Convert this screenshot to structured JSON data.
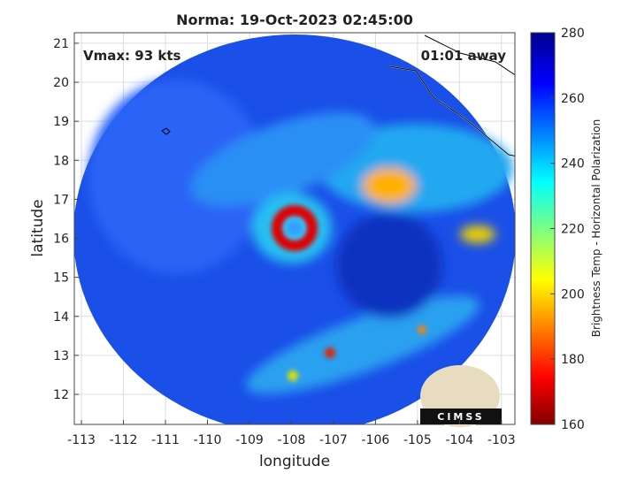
{
  "chart_data": {
    "type": "map",
    "title": "Norma: 19-Oct-2023 02:45:00",
    "xlabel": "longitude",
    "ylabel": "latitude",
    "xlim": [
      -113.17,
      -102.68
    ],
    "ylim": [
      11.23,
      21.27
    ],
    "xticks": [
      -113,
      -112,
      -111,
      -110,
      -109,
      -108,
      -107,
      -106,
      -105,
      -104,
      -103
    ],
    "yticks": [
      12,
      13,
      14,
      15,
      16,
      17,
      18,
      19,
      20,
      21
    ],
    "grid": true,
    "annotations": [
      "Vmax: 93 kts",
      "01:01 away",
      "CIMSS"
    ],
    "colorbar": {
      "label": "Brightness Temp - Horizontal Polarization",
      "lim": [
        160,
        280
      ],
      "ticks": [
        160,
        180,
        200,
        220,
        240,
        260,
        280
      ]
    }
  }
}
